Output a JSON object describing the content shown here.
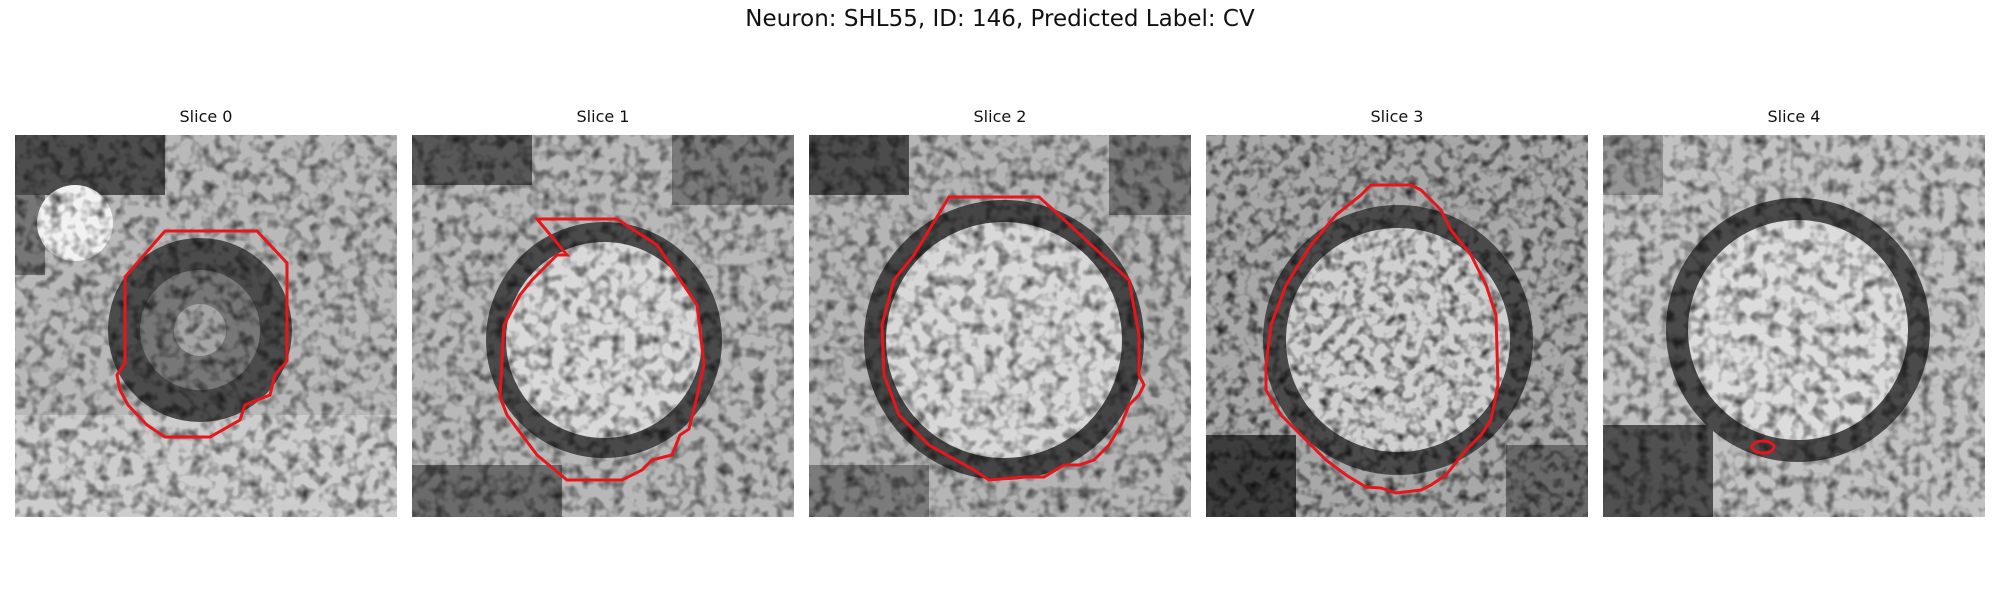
{
  "figure": {
    "title": "Neuron: SHL55, ID: 146, Predicted Label: CV"
  },
  "panels": [
    {
      "title": "Slice 0",
      "contour_color": "#e8161b",
      "cell_state": "dark-ring-dark-center"
    },
    {
      "title": "Slice 1",
      "contour_color": "#e8161b",
      "cell_state": "bright-center"
    },
    {
      "title": "Slice 2",
      "contour_color": "#e8161b",
      "cell_state": "bright-center"
    },
    {
      "title": "Slice 3",
      "contour_color": "#e8161b",
      "cell_state": "bright-center"
    },
    {
      "title": "Slice 4",
      "contour_color": "#e8161b",
      "cell_state": "bright-center-small-contour"
    }
  ]
}
